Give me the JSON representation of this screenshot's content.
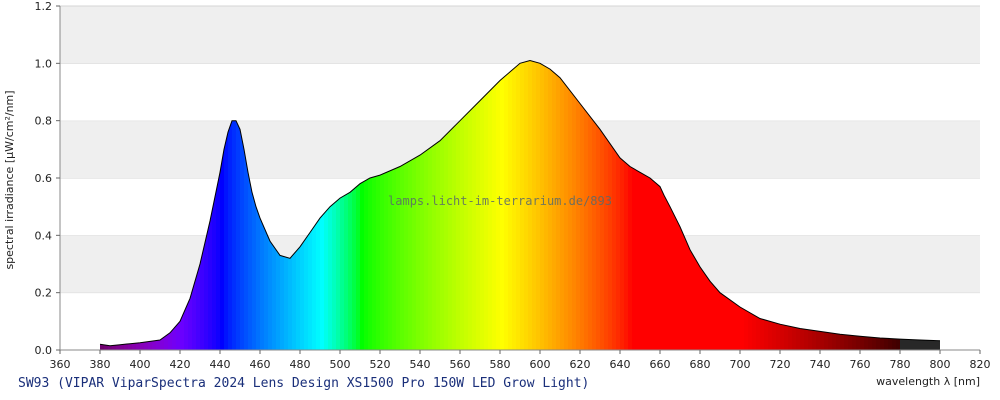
{
  "caption": "SW93 (VIPAR ViparSpectra 2024 Lens Design XS1500 Pro 150W LED Grow Light)",
  "watermark": "lamps.licht-im-terrarium.de/893",
  "chart_data": {
    "type": "area",
    "title": "",
    "xlabel": "wavelength λ [nm]",
    "ylabel": "spectral irradiance [µW/cm²/nm]",
    "xlim": [
      360,
      820
    ],
    "ylim": [
      0,
      1.2
    ],
    "x_ticks": [
      360,
      380,
      400,
      420,
      440,
      460,
      480,
      500,
      520,
      540,
      560,
      580,
      600,
      620,
      640,
      660,
      680,
      700,
      720,
      740,
      760,
      780,
      800,
      820
    ],
    "y_ticks": [
      0.0,
      0.2,
      0.4,
      0.6,
      0.8,
      1.0,
      1.2
    ],
    "grid": "horizontal bands",
    "series": [
      {
        "x": [
          380,
          385,
          390,
          395,
          400,
          405,
          410,
          415,
          420,
          425,
          430,
          435,
          440,
          442,
          444,
          446,
          448,
          450,
          452,
          454,
          456,
          458,
          460,
          465,
          470,
          475,
          480,
          485,
          490,
          495,
          500,
          505,
          510,
          515,
          520,
          530,
          540,
          550,
          560,
          570,
          580,
          585,
          590,
          595,
          600,
          605,
          610,
          620,
          630,
          640,
          645,
          650,
          655,
          660,
          662,
          665,
          670,
          675,
          680,
          685,
          690,
          700,
          710,
          720,
          730,
          740,
          750,
          760,
          770,
          780,
          790,
          800
        ],
        "y": [
          0.02,
          0.015,
          0.018,
          0.022,
          0.025,
          0.03,
          0.035,
          0.06,
          0.1,
          0.18,
          0.3,
          0.45,
          0.62,
          0.7,
          0.76,
          0.8,
          0.8,
          0.77,
          0.7,
          0.62,
          0.55,
          0.5,
          0.46,
          0.38,
          0.33,
          0.32,
          0.36,
          0.41,
          0.46,
          0.5,
          0.53,
          0.55,
          0.58,
          0.6,
          0.61,
          0.64,
          0.68,
          0.73,
          0.8,
          0.87,
          0.94,
          0.97,
          1.0,
          1.01,
          1.0,
          0.98,
          0.95,
          0.86,
          0.77,
          0.67,
          0.64,
          0.62,
          0.6,
          0.57,
          0.54,
          0.5,
          0.43,
          0.35,
          0.29,
          0.24,
          0.2,
          0.15,
          0.11,
          0.09,
          0.075,
          0.065,
          0.055,
          0.048,
          0.042,
          0.038,
          0.035,
          0.032
        ]
      }
    ]
  }
}
